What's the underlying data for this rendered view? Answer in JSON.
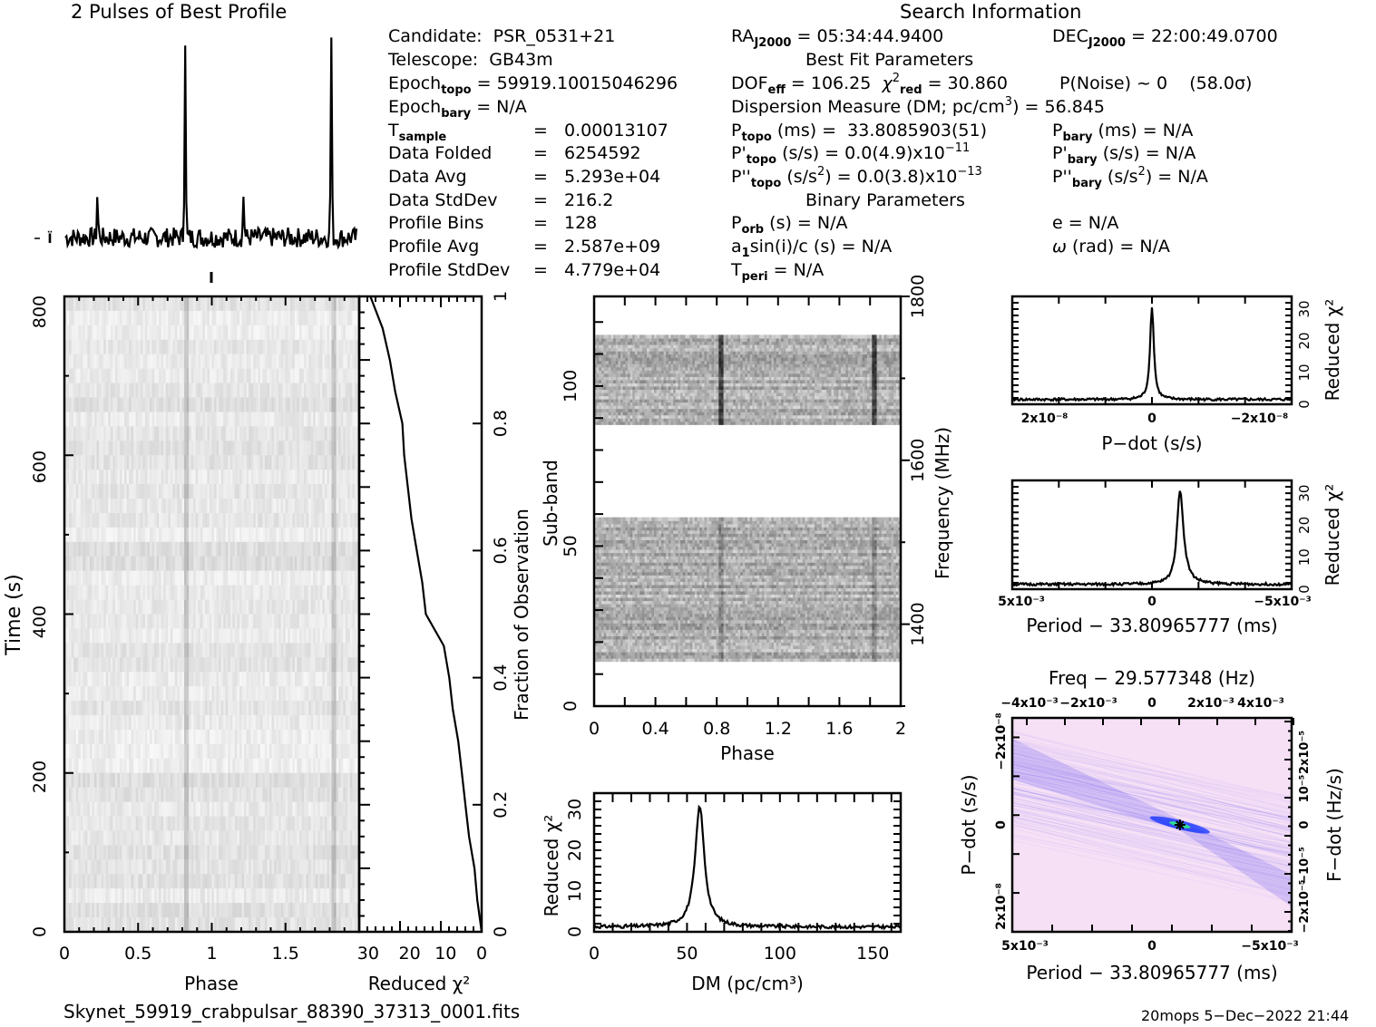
{
  "header": {
    "profile_title": "2 Pulses of Best Profile",
    "search_title": "Search Information",
    "best_fit_title": "Best Fit Parameters",
    "binary_title": "Binary Parameters"
  },
  "info": {
    "candidate_label": "Candidate:",
    "candidate": "PSR_0531+21",
    "telescope_label": "Telescope:",
    "telescope": "GB43m",
    "epoch_topo": "59919.10015046296",
    "epoch_bary": "N/A",
    "t_sample": "0.00013107",
    "data_folded": "6254592",
    "data_avg": "5.293e+04",
    "data_stddev": "216.2",
    "profile_bins": "128",
    "profile_avg": "2.587e+09",
    "profile_stddev": "4.779e+04",
    "labels": {
      "epoch": "Epoch",
      "topo": "topo",
      "bary": "bary",
      "t": "T",
      "sample": "sample",
      "data_folded": "Data Folded",
      "data_avg": "Data Avg",
      "data_stddev": "Data StdDev",
      "profile_bins": "Profile Bins",
      "profile_avg": "Profile Avg",
      "profile_stddev": "Profile StdDev",
      "eq": "="
    }
  },
  "search": {
    "ra_label": "RA",
    "j2000": "J2000",
    "ra": "05:34:44.9400",
    "dec_label": "DEC",
    "dec": "22:00:49.0700",
    "dof_eff": "106.25",
    "chi2_red": "30.860",
    "p_noise": "P(Noise) ~ 0",
    "sigma": "(58.0σ)",
    "dm_label": "Dispersion Measure (DM; pc/cm",
    "dm": "56.845",
    "p_topo_ms": "33.8085903(51)",
    "pd_topo": "0.0(4.9)x10",
    "pd_topo_exp": "−11",
    "pdd_topo": "0.0(3.8)x10",
    "pdd_topo_exp": "−13",
    "p_bary_ms": "N/A",
    "pd_bary": "N/A",
    "pdd_bary": "N/A",
    "p_orb": "N/A",
    "a1sini": "N/A",
    "t_peri": "N/A",
    "e": "N/A",
    "omega": "N/A"
  },
  "footer": {
    "filename": "Skynet_59919_crabpulsar_88390_37313_0001.fits",
    "stamp": "20mops   5−Dec−2022 21:44"
  },
  "chart_data": [
    {
      "id": "profile",
      "type": "line",
      "title": "2 Pulses of Best Profile",
      "xlabel": "",
      "ylabel": "",
      "description": "Pulse profile repeated twice: main pulse near phase 0.82 and 1.82, interpulse near 0.22 and 1.22",
      "main_pulse_phase": 0.82,
      "interpulse_phase": 0.22,
      "main_pulse_rel_height": 1.0,
      "interpulse_rel_height": 0.22
    },
    {
      "id": "time-phase",
      "type": "heatmap",
      "xlabel": "Phase",
      "ylabel": "Time (s)",
      "xticks": [
        "0",
        "0.5",
        "1",
        "1.5"
      ],
      "yticks": [
        "0",
        "200",
        "400",
        "600",
        "800"
      ],
      "xlim": [
        0,
        2
      ],
      "ylim": [
        0,
        820
      ],
      "pulse_phases": [
        0.82,
        1.82
      ]
    },
    {
      "id": "chi2-vs-fraction",
      "type": "line",
      "xlabel": "Reduced χ²",
      "ylabel": "Fraction of Observation",
      "xticks": [
        "30",
        "20",
        "10",
        "0"
      ],
      "yticks": [
        "0",
        "0.2",
        "0.4",
        "0.6",
        "0.8",
        "1"
      ],
      "xlim": [
        34,
        0
      ],
      "ylim": [
        0,
        1
      ],
      "points": [
        [
          0,
          0
        ],
        [
          1.2,
          0.05
        ],
        [
          2,
          0.1
        ],
        [
          3.5,
          0.15
        ],
        [
          4.5,
          0.2
        ],
        [
          5.5,
          0.25
        ],
        [
          6.5,
          0.3
        ],
        [
          8,
          0.35
        ],
        [
          9,
          0.4
        ],
        [
          10.5,
          0.45
        ],
        [
          13.5,
          0.48
        ],
        [
          15.5,
          0.5
        ],
        [
          16.5,
          0.55
        ],
        [
          18,
          0.6
        ],
        [
          19.5,
          0.65
        ],
        [
          20.5,
          0.7
        ],
        [
          21.5,
          0.75
        ],
        [
          22,
          0.8
        ],
        [
          24,
          0.85
        ],
        [
          25.5,
          0.9
        ],
        [
          27.5,
          0.95
        ],
        [
          30.9,
          1.0
        ]
      ]
    },
    {
      "id": "subband-phase",
      "type": "heatmap",
      "xlabel": "Phase",
      "ylabel": "Sub-band",
      "y2label": "Frequency (MHz)",
      "xticks": [
        "0",
        "0.4",
        "0.8",
        "1.2",
        "1.6",
        "2"
      ],
      "yticks": [
        "0",
        "50",
        "100"
      ],
      "y2ticks": [
        "1400",
        "1600",
        "1800"
      ],
      "xlim": [
        0,
        2
      ],
      "ylim": [
        0,
        128
      ],
      "y2lim": [
        1300,
        1800
      ],
      "data_bands": [
        [
          14,
          59
        ],
        [
          88,
          116
        ]
      ],
      "pulse_phases": [
        0.82,
        1.82
      ]
    },
    {
      "id": "dm-chi2",
      "type": "line",
      "xlabel": "DM (pc/cm³)",
      "ylabel": "Reduced χ²",
      "xticks": [
        "0",
        "50",
        "100",
        "150"
      ],
      "yticks": [
        "0",
        "10",
        "20",
        "30"
      ],
      "xlim": [
        0,
        165
      ],
      "ylim": [
        0,
        34
      ],
      "peak_dm": 56.845,
      "peak_chi2": 30.86,
      "baseline_chi2": 1.2
    },
    {
      "id": "pdot-chi2",
      "type": "line",
      "xlabel": "P−dot (s/s)",
      "ylabel": "Reduced χ²",
      "xticks": [
        "2x10⁻⁸",
        "0",
        "−2x10⁻⁸"
      ],
      "yticks": [
        "0",
        "10",
        "20",
        "30"
      ],
      "xlim": [
        2.6e-08,
        -2.6e-08
      ],
      "ylim": [
        0,
        34
      ],
      "peak_x": 0,
      "peak_chi2": 30.86,
      "baseline_chi2": 1.5
    },
    {
      "id": "period-chi2",
      "type": "line",
      "xlabel": "Period − 33.80965777 (ms)",
      "ylabel": "Reduced χ²",
      "xticks": [
        "5x10⁻³",
        "0",
        "−5x10⁻³"
      ],
      "yticks": [
        "0",
        "10",
        "20",
        "30"
      ],
      "xlim": [
        0.005,
        -0.005
      ],
      "ylim": [
        0,
        34
      ],
      "peak_x": -0.001,
      "peak_chi2": 30.86,
      "baseline_chi2": 1.5
    },
    {
      "id": "p-pdot-plane",
      "type": "heatmap",
      "title": "Freq − 29.577348 (Hz)",
      "xlabel": "Period − 33.80965777 (ms)",
      "ylabel": "P−dot (s/s)",
      "y2label": "F−dot (Hz/s)",
      "xticks": [
        "5x10⁻³",
        "0",
        "−5x10⁻³"
      ],
      "x2ticks": [
        "−4x10⁻³",
        "−2x10⁻³",
        "0",
        "2x10⁻³",
        "4x10⁻³"
      ],
      "yticks": [
        "−2x10⁻⁸",
        "0",
        "2x10⁻⁸"
      ],
      "y2ticks": [
        "2x10⁻⁵",
        "10⁻⁵",
        "0",
        "−10⁻⁵",
        "−2x10⁻⁵"
      ],
      "best_x": -0.001,
      "best_y": 0,
      "colors": {
        "background": "#f6e0f6",
        "ridge": "#6a5cf0",
        "core": "#0a2cff",
        "peak": "#30e090"
      }
    }
  ]
}
